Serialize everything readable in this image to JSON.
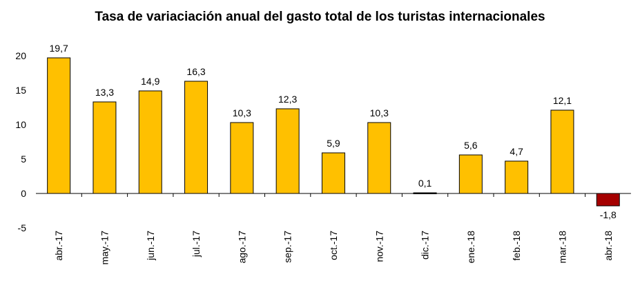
{
  "chart_data": {
    "type": "bar",
    "title": "Tasa de variaciación anual del gasto total de los turistas internacionales",
    "categories": [
      "abr.-17",
      "may.-17",
      "jun.-17",
      "jul.-17",
      "ago.-17",
      "sep.-17",
      "oct.-17",
      "nov.-17",
      "dic.-17",
      "ene.-18",
      "feb.-18",
      "mar.-18",
      "abr.-18"
    ],
    "values": [
      19.7,
      13.3,
      14.9,
      16.3,
      10.3,
      12.3,
      5.9,
      10.3,
      0.1,
      5.6,
      4.7,
      12.1,
      -1.8
    ],
    "value_labels": [
      "19,7",
      "13,3",
      "14,9",
      "16,3",
      "10,3",
      "12,3",
      "5,9",
      "10,3",
      "0,1",
      "5,6",
      "4,7",
      "12,1",
      "-1,8"
    ],
    "yticks": [
      -5,
      0,
      5,
      10,
      15,
      20
    ],
    "ylim": [
      -5,
      20
    ],
    "xlabel": "",
    "ylabel": "",
    "grid": false,
    "colors": {
      "positive": "#FFC000",
      "negative": "#A50000",
      "outline": "#000000"
    }
  }
}
